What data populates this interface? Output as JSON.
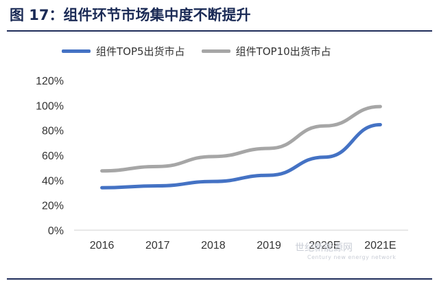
{
  "figure_title": "图 17：组件环节市场集中度不断提升",
  "watermark": {
    "text": "世纪新能源网",
    "subtext": "Century new energy network"
  },
  "chart_data": {
    "type": "line",
    "categories": [
      "2016",
      "2017",
      "2018",
      "2019",
      "2020E",
      "2021E"
    ],
    "series": [
      {
        "name": "组件TOP5出货市占",
        "color": "#4472c4",
        "values": [
          34,
          35.5,
          39,
          44,
          58.5,
          84.5
        ]
      },
      {
        "name": "组件TOP10出货市占",
        "color": "#a6a6a6",
        "values": [
          47.5,
          51,
          59,
          65.5,
          83.5,
          99
        ]
      }
    ],
    "yticks": [
      "0%",
      "20%",
      "40%",
      "60%",
      "80%",
      "100%",
      "120%"
    ],
    "ylim": [
      0,
      120
    ],
    "grid": false,
    "legend": "top"
  }
}
